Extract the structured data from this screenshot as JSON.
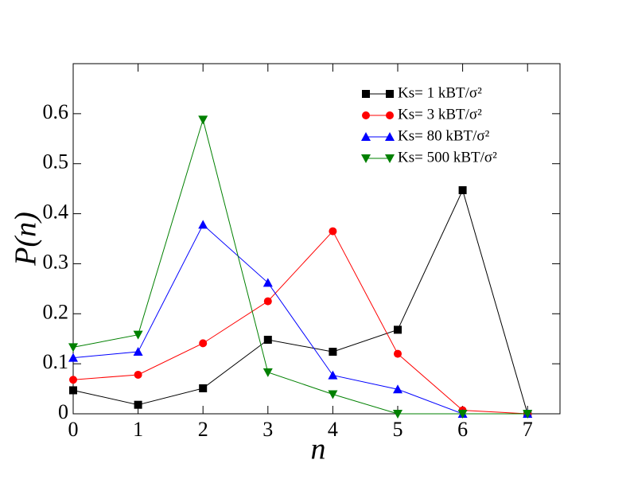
{
  "chart_data": {
    "type": "line",
    "x_label": "n",
    "y_label": "P(n)",
    "x": [
      0,
      1,
      2,
      3,
      4,
      5,
      6,
      7
    ],
    "xlim": [
      0,
      7.5
    ],
    "xticks": [
      0,
      1,
      2,
      3,
      4,
      5,
      6,
      7
    ],
    "ylim": [
      0,
      0.7
    ],
    "yticks": [
      0,
      0.1,
      0.2,
      0.3,
      0.4,
      0.5,
      0.6
    ],
    "legend": "upper right",
    "series": [
      {
        "name": "Ks= 1 kBT/σ²",
        "color": "#000000",
        "marker": "square",
        "values": [
          0.047,
          0.018,
          0.051,
          0.148,
          0.124,
          0.168,
          0.447,
          0.0
        ]
      },
      {
        "name": "Ks= 3 kBT/σ²",
        "color": "#ff0000",
        "marker": "circle",
        "values": [
          0.068,
          0.078,
          0.141,
          0.225,
          0.365,
          0.12,
          0.007,
          0.0
        ]
      },
      {
        "name": "Ks= 80 kBT/σ²",
        "color": "#0000ff",
        "marker": "triangle-up",
        "values": [
          0.112,
          0.124,
          0.378,
          0.262,
          0.077,
          0.049,
          0.0,
          0.0
        ]
      },
      {
        "name": "Ks= 500 kBT/σ²",
        "color": "#008000",
        "marker": "triangle-down",
        "values": [
          0.133,
          0.158,
          0.588,
          0.083,
          0.039,
          0.0,
          0.0,
          0.0
        ]
      }
    ]
  }
}
